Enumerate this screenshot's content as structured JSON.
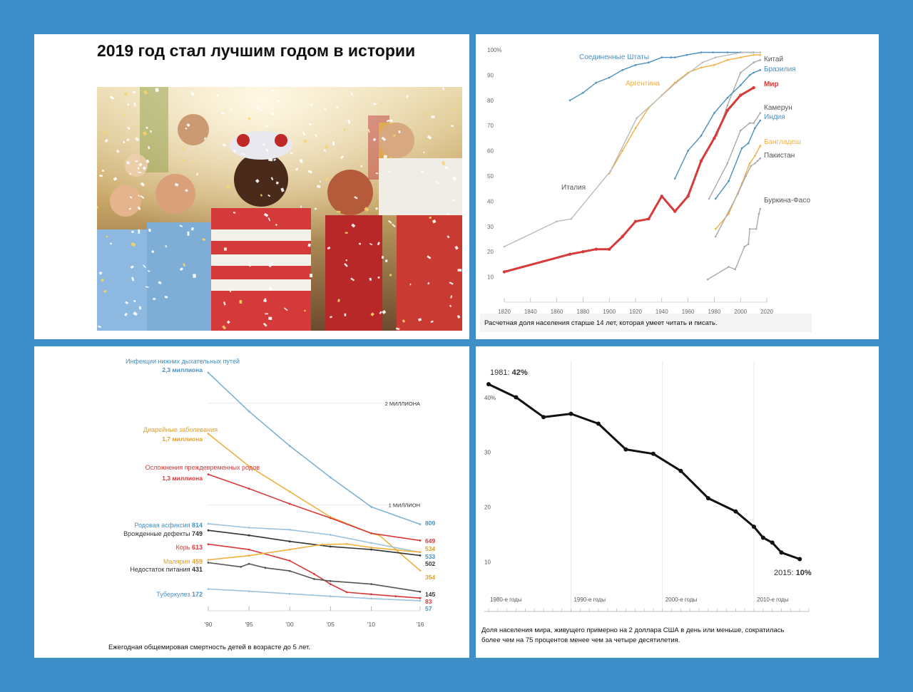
{
  "panel1": {
    "title": "2019 год стал лучшим годом в истории",
    "photo": "crowd-celebrating-confetti"
  },
  "chart_data": [
    {
      "type": "line",
      "caption": "Расчетная доля населения старше 14 лет, которая умеет читать и писать.",
      "xlim": [
        1820,
        2020
      ],
      "ylim": [
        0,
        100
      ],
      "x_ticks": [
        1820,
        1840,
        1860,
        1880,
        1900,
        1920,
        1940,
        1960,
        1980,
        2000,
        2020
      ],
      "y_ticks": [
        10,
        20,
        30,
        40,
        50,
        60,
        70,
        80,
        90,
        100
      ],
      "y_top_label": "100%",
      "series": [
        {
          "name": "Соединенные Штаты",
          "color": "#4a8fc0",
          "points": [
            [
              1870,
              80
            ],
            [
              1880,
              83
            ],
            [
              1890,
              87
            ],
            [
              1900,
              89
            ],
            [
              1910,
              92
            ],
            [
              1920,
              94
            ],
            [
              1930,
              95
            ],
            [
              1940,
              97
            ],
            [
              1947,
              97
            ],
            [
              1950,
              97
            ],
            [
              1959,
              98
            ],
            [
              1970,
              99
            ],
            [
              1979,
              99
            ],
            [
              1990,
              99
            ],
            [
              2000,
              99
            ],
            [
              2010,
              99
            ]
          ]
        },
        {
          "name": "Китай",
          "color": "#aaaaaa",
          "points": [
            [
              1982,
              66
            ],
            [
              1990,
              78
            ],
            [
              2000,
              91
            ],
            [
              2010,
              95
            ],
            [
              2015,
              96
            ]
          ]
        },
        {
          "name": "Бразилия",
          "color": "#4a8fc0",
          "points": [
            [
              1950,
              49
            ],
            [
              1960,
              60
            ],
            [
              1970,
              66
            ],
            [
              1980,
              75
            ],
            [
              1990,
              81
            ],
            [
              2000,
              86
            ],
            [
              2007,
              90
            ],
            [
              2010,
              91
            ],
            [
              2015,
              92
            ]
          ]
        },
        {
          "name": "Аргентина",
          "color": "#f0b040",
          "points": [
            [
              1900,
              51
            ],
            [
              1910,
              60
            ],
            [
              1920,
              69
            ],
            [
              1930,
              77
            ],
            [
              1940,
              82
            ],
            [
              1950,
              87
            ],
            [
              1960,
              91
            ],
            [
              1970,
              93
            ],
            [
              1980,
              94
            ],
            [
              1990,
              96
            ],
            [
              2000,
              97
            ],
            [
              2010,
              98
            ],
            [
              2015,
              98
            ]
          ]
        },
        {
          "name": "Мир",
          "color": "#d73a3a",
          "points": [
            [
              1820,
              12
            ],
            [
              1870,
              19
            ],
            [
              1880,
              20
            ],
            [
              1890,
              21
            ],
            [
              1900,
              21
            ],
            [
              1910,
              26
            ],
            [
              1920,
              32
            ],
            [
              1930,
              33
            ],
            [
              1940,
              42
            ],
            [
              1950,
              36
            ],
            [
              1960,
              42
            ],
            [
              1970,
              56
            ],
            [
              1980,
              65
            ],
            [
              1990,
              76
            ],
            [
              2000,
              82
            ],
            [
              2010,
              85
            ]
          ]
        },
        {
          "name": "Камерун",
          "color": "#aaaaaa",
          "points": [
            [
              1976,
              41
            ],
            [
              1990,
              55
            ],
            [
              2000,
              68
            ],
            [
              2007,
              71
            ],
            [
              2010,
              71
            ],
            [
              2015,
              75
            ]
          ]
        },
        {
          "name": "Индия",
          "color": "#4a8fc0",
          "points": [
            [
              1981,
              41
            ],
            [
              1991,
              48
            ],
            [
              2001,
              61
            ],
            [
              2006,
              63
            ],
            [
              2011,
              69
            ],
            [
              2015,
              72
            ]
          ]
        },
        {
          "name": "Бангладеш",
          "color": "#f0b040",
          "points": [
            [
              1981,
              29
            ],
            [
              1991,
              35
            ],
            [
              2001,
              47
            ],
            [
              2007,
              55
            ],
            [
              2011,
              58
            ],
            [
              2015,
              62
            ]
          ]
        },
        {
          "name": "Пакистан",
          "color": "#aaaaaa",
          "points": [
            [
              1981,
              26
            ],
            [
              1998,
              43
            ],
            [
              2004,
              50
            ],
            [
              2008,
              54
            ],
            [
              2011,
              55
            ],
            [
              2013,
              56
            ],
            [
              2015,
              57
            ]
          ]
        },
        {
          "name": "Италия",
          "color": "#bbbbbb",
          "points": [
            [
              1820,
              22
            ],
            [
              1860,
              32
            ],
            [
              1871,
              33
            ],
            [
              1901,
              52
            ],
            [
              1921,
              73
            ],
            [
              1951,
              87
            ],
            [
              1971,
              95
            ],
            [
              1981,
              97
            ],
            [
              2001,
              99
            ],
            [
              2015,
              99
            ]
          ]
        },
        {
          "name": "Буркина-Фасо",
          "color": "#aaaaaa",
          "points": [
            [
              1975,
              9
            ],
            [
              1991,
              14
            ],
            [
              1996,
              13
            ],
            [
              2003,
              22
            ],
            [
              2006,
              23
            ],
            [
              2007,
              29
            ],
            [
              2012,
              29
            ],
            [
              2014,
              35
            ],
            [
              2015,
              37
            ]
          ]
        }
      ]
    },
    {
      "type": "line",
      "caption": "Ежегодная общемировая смертность детей в возрасте до 5 лет.",
      "x_tick_labels": [
        "'90",
        "'95",
        "'00",
        "'05",
        "'10",
        "'16"
      ],
      "xlim": [
        1990,
        2016
      ],
      "ylim": [
        0,
        2300
      ],
      "reference_lines": [
        {
          "label": "2 МИЛЛИОНА",
          "value": 2000
        },
        {
          "label": "1 МИЛЛИОН",
          "value": 1000
        }
      ],
      "series": [
        {
          "name": "Инфекции нижних дыхательных путей",
          "start_label": "2,3 миллиона",
          "end_label": "809",
          "color": "#7fb1d6",
          "label_color": "#4a8fc0",
          "x": [
            1990,
            1995,
            2000,
            2005,
            2010,
            2016
          ],
          "values": [
            2300,
            1920,
            1580,
            1270,
            980,
            809
          ]
        },
        {
          "name": "Диарейные заболевания",
          "start_label": "1,7 миллиона",
          "end_label": "354",
          "color": "#f0b040",
          "label_color": "#e0a030",
          "x": [
            1990,
            1995,
            2000,
            2005,
            2010,
            2011,
            2013,
            2016
          ],
          "values": [
            1700,
            1380,
            1130,
            880,
            720,
            700,
            560,
            354
          ]
        },
        {
          "name": "Осложнения преждевременных родов",
          "start_label": "1,3 миллиона",
          "end_label": "649",
          "color": "#d73a3a",
          "label_color": "#d73a3a",
          "x": [
            1990,
            1995,
            2000,
            2005,
            2010,
            2016
          ],
          "values": [
            1300,
            1160,
            1010,
            870,
            720,
            649
          ]
        },
        {
          "name": "Родовая асфиксия",
          "value_label": "814",
          "end_label": "533",
          "color": "#9cc3de",
          "label_color": "#4a8fc0",
          "x": [
            1990,
            1995,
            2000,
            2005,
            2010,
            2016
          ],
          "values": [
            814,
            775,
            755,
            705,
            625,
            533
          ]
        },
        {
          "name": "Врожденные дефекты",
          "value_label": "749",
          "end_label": "502",
          "color": "#333333",
          "label_color": "#333333",
          "x": [
            1990,
            1995,
            2000,
            2005,
            2010,
            2016
          ],
          "values": [
            749,
            700,
            640,
            590,
            560,
            502
          ]
        },
        {
          "name": "Корь",
          "value_label": "613",
          "end_label": "83",
          "color": "#d73a3a",
          "label_color": "#d73a3a",
          "x": [
            1990,
            1995,
            2000,
            2003,
            2005,
            2007,
            2010,
            2013,
            2016
          ],
          "values": [
            613,
            560,
            450,
            320,
            220,
            140,
            120,
            100,
            83
          ]
        },
        {
          "name": "Малярия",
          "value_label": "459",
          "end_label": "534",
          "color": "#f0b040",
          "label_color": "#e0a030",
          "x": [
            1990,
            1995,
            2000,
            2004,
            2007,
            2010,
            2016
          ],
          "values": [
            459,
            500,
            560,
            610,
            615,
            580,
            534
          ]
        },
        {
          "name": "Недостаток питания",
          "value_label": "431",
          "end_label": "145",
          "color": "#555555",
          "label_color": "#333333",
          "x": [
            1990,
            1994,
            1995,
            1997,
            2000,
            2003,
            2005,
            2010,
            2016
          ],
          "values": [
            431,
            390,
            420,
            380,
            350,
            270,
            250,
            220,
            145
          ]
        },
        {
          "name": "Туберкулез",
          "value_label": "172",
          "end_label": "57",
          "color": "#9cc3de",
          "label_color": "#4a8fc0",
          "x": [
            1990,
            1995,
            2000,
            2005,
            2010,
            2016
          ],
          "values": [
            172,
            150,
            125,
            100,
            78,
            57
          ]
        }
      ]
    },
    {
      "type": "line",
      "caption": "Доля населения мира, живущего примерно на 2 доллара США в день или меньше, сократилась более чем на 75 процентов менее чем за четыре десятилетия.",
      "xlim": [
        1981,
        2016
      ],
      "ylim": [
        8,
        44
      ],
      "y_ticks": [
        10,
        20,
        30,
        40
      ],
      "y_tick_labels": [
        "10",
        "20",
        "30",
        "40%"
      ],
      "decade_labels": [
        "1980-е годы",
        "1990-е годы",
        "2000-е годы",
        "2010-е годы"
      ],
      "start_annotation": {
        "label": "1981: ",
        "value": "42%"
      },
      "end_annotation": {
        "label": "2015: ",
        "value": "10%"
      },
      "series": [
        {
          "color": "#111111",
          "x": [
            1981,
            1984,
            1987,
            1990,
            1993,
            1996,
            1999,
            2002,
            2005,
            2008,
            2010,
            2011,
            2012,
            2013,
            2015
          ],
          "values": [
            42.3,
            39.9,
            36.3,
            36.9,
            35.1,
            30.4,
            29.6,
            26.5,
            21.5,
            19.1,
            16.3,
            14.3,
            13.4,
            11.6,
            10.4
          ]
        }
      ]
    }
  ]
}
